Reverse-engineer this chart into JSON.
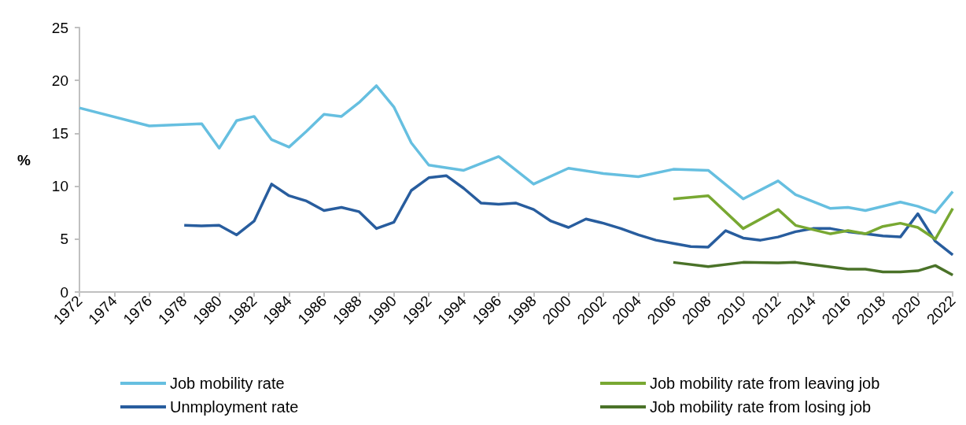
{
  "chart_data": {
    "type": "line",
    "ylabel": "%",
    "xlim": [
      1972,
      2022
    ],
    "xticks": [
      1972,
      1974,
      1976,
      1978,
      1980,
      1982,
      1984,
      1986,
      1988,
      1990,
      1992,
      1994,
      1996,
      1998,
      2000,
      2002,
      2004,
      2006,
      2008,
      2010,
      2012,
      2014,
      2016,
      2018,
      2020,
      2022
    ],
    "ylim": [
      0,
      25
    ],
    "yticks": [
      0,
      5,
      10,
      15,
      20,
      25
    ],
    "grid": false,
    "legend": "bottom",
    "marker": "none",
    "line_style": "solid",
    "series": [
      {
        "name": "Job mobility rate",
        "color": "#66bfe0",
        "x": [
          1972,
          1976,
          1979,
          1980,
          1981,
          1982,
          1983,
          1984,
          1985,
          1986,
          1987,
          1988,
          1989,
          1990,
          1991,
          1992,
          1994,
          1996,
          1998,
          2000,
          2002,
          2004,
          2006,
          2008,
          2010,
          2012,
          2013,
          2015,
          2016,
          2017,
          2019,
          2020,
          2021,
          2022
        ],
        "values": [
          17.4,
          15.7,
          15.9,
          13.6,
          16.2,
          16.6,
          14.4,
          13.7,
          15.2,
          16.8,
          16.6,
          17.9,
          19.5,
          17.5,
          14.1,
          12.0,
          11.5,
          12.8,
          10.2,
          11.7,
          11.2,
          10.9,
          11.6,
          11.5,
          8.8,
          10.5,
          9.2,
          7.9,
          8.0,
          7.7,
          8.5,
          8.1,
          7.5,
          9.5
        ]
      },
      {
        "name": "Unmployment rate",
        "color": "#285d9e",
        "x": [
          1978,
          1979,
          1980,
          1981,
          1982,
          1983,
          1984,
          1985,
          1986,
          1987,
          1988,
          1989,
          1990,
          1991,
          1992,
          1993,
          1994,
          1995,
          1996,
          1997,
          1998,
          1999,
          2000,
          2001,
          2002,
          2003,
          2004,
          2005,
          2006,
          2007,
          2008,
          2009,
          2010,
          2011,
          2012,
          2013,
          2014,
          2015,
          2016,
          2017,
          2018,
          2019,
          2020,
          2021,
          2022
        ],
        "values": [
          6.3,
          6.25,
          6.3,
          5.4,
          6.7,
          10.2,
          9.1,
          8.6,
          7.7,
          8.0,
          7.6,
          6.0,
          6.6,
          9.6,
          10.8,
          11.0,
          9.8,
          8.4,
          8.3,
          8.4,
          7.8,
          6.7,
          6.1,
          6.9,
          6.5,
          6.0,
          5.4,
          4.9,
          4.6,
          4.3,
          4.25,
          5.8,
          5.1,
          4.9,
          5.2,
          5.7,
          6.0,
          6.0,
          5.7,
          5.5,
          5.3,
          5.2,
          7.4,
          4.8,
          3.5
        ]
      },
      {
        "name": "Job mobility rate from leaving job",
        "color": "#78a832",
        "x": [
          2006,
          2008,
          2010,
          2012,
          2013,
          2015,
          2016,
          2017,
          2018,
          2019,
          2020,
          2021,
          2022
        ],
        "values": [
          8.8,
          9.1,
          6.0,
          7.8,
          6.3,
          5.5,
          5.8,
          5.5,
          6.2,
          6.5,
          6.1,
          5.0,
          7.9
        ]
      },
      {
        "name": "Job mobility rate from losing job",
        "color": "#4a7228",
        "x": [
          2006,
          2008,
          2010,
          2012,
          2013,
          2016,
          2017,
          2018,
          2019,
          2020,
          2021,
          2022
        ],
        "values": [
          2.8,
          2.4,
          2.8,
          2.75,
          2.8,
          2.15,
          2.15,
          1.9,
          1.9,
          2.0,
          2.5,
          1.6
        ]
      }
    ]
  }
}
